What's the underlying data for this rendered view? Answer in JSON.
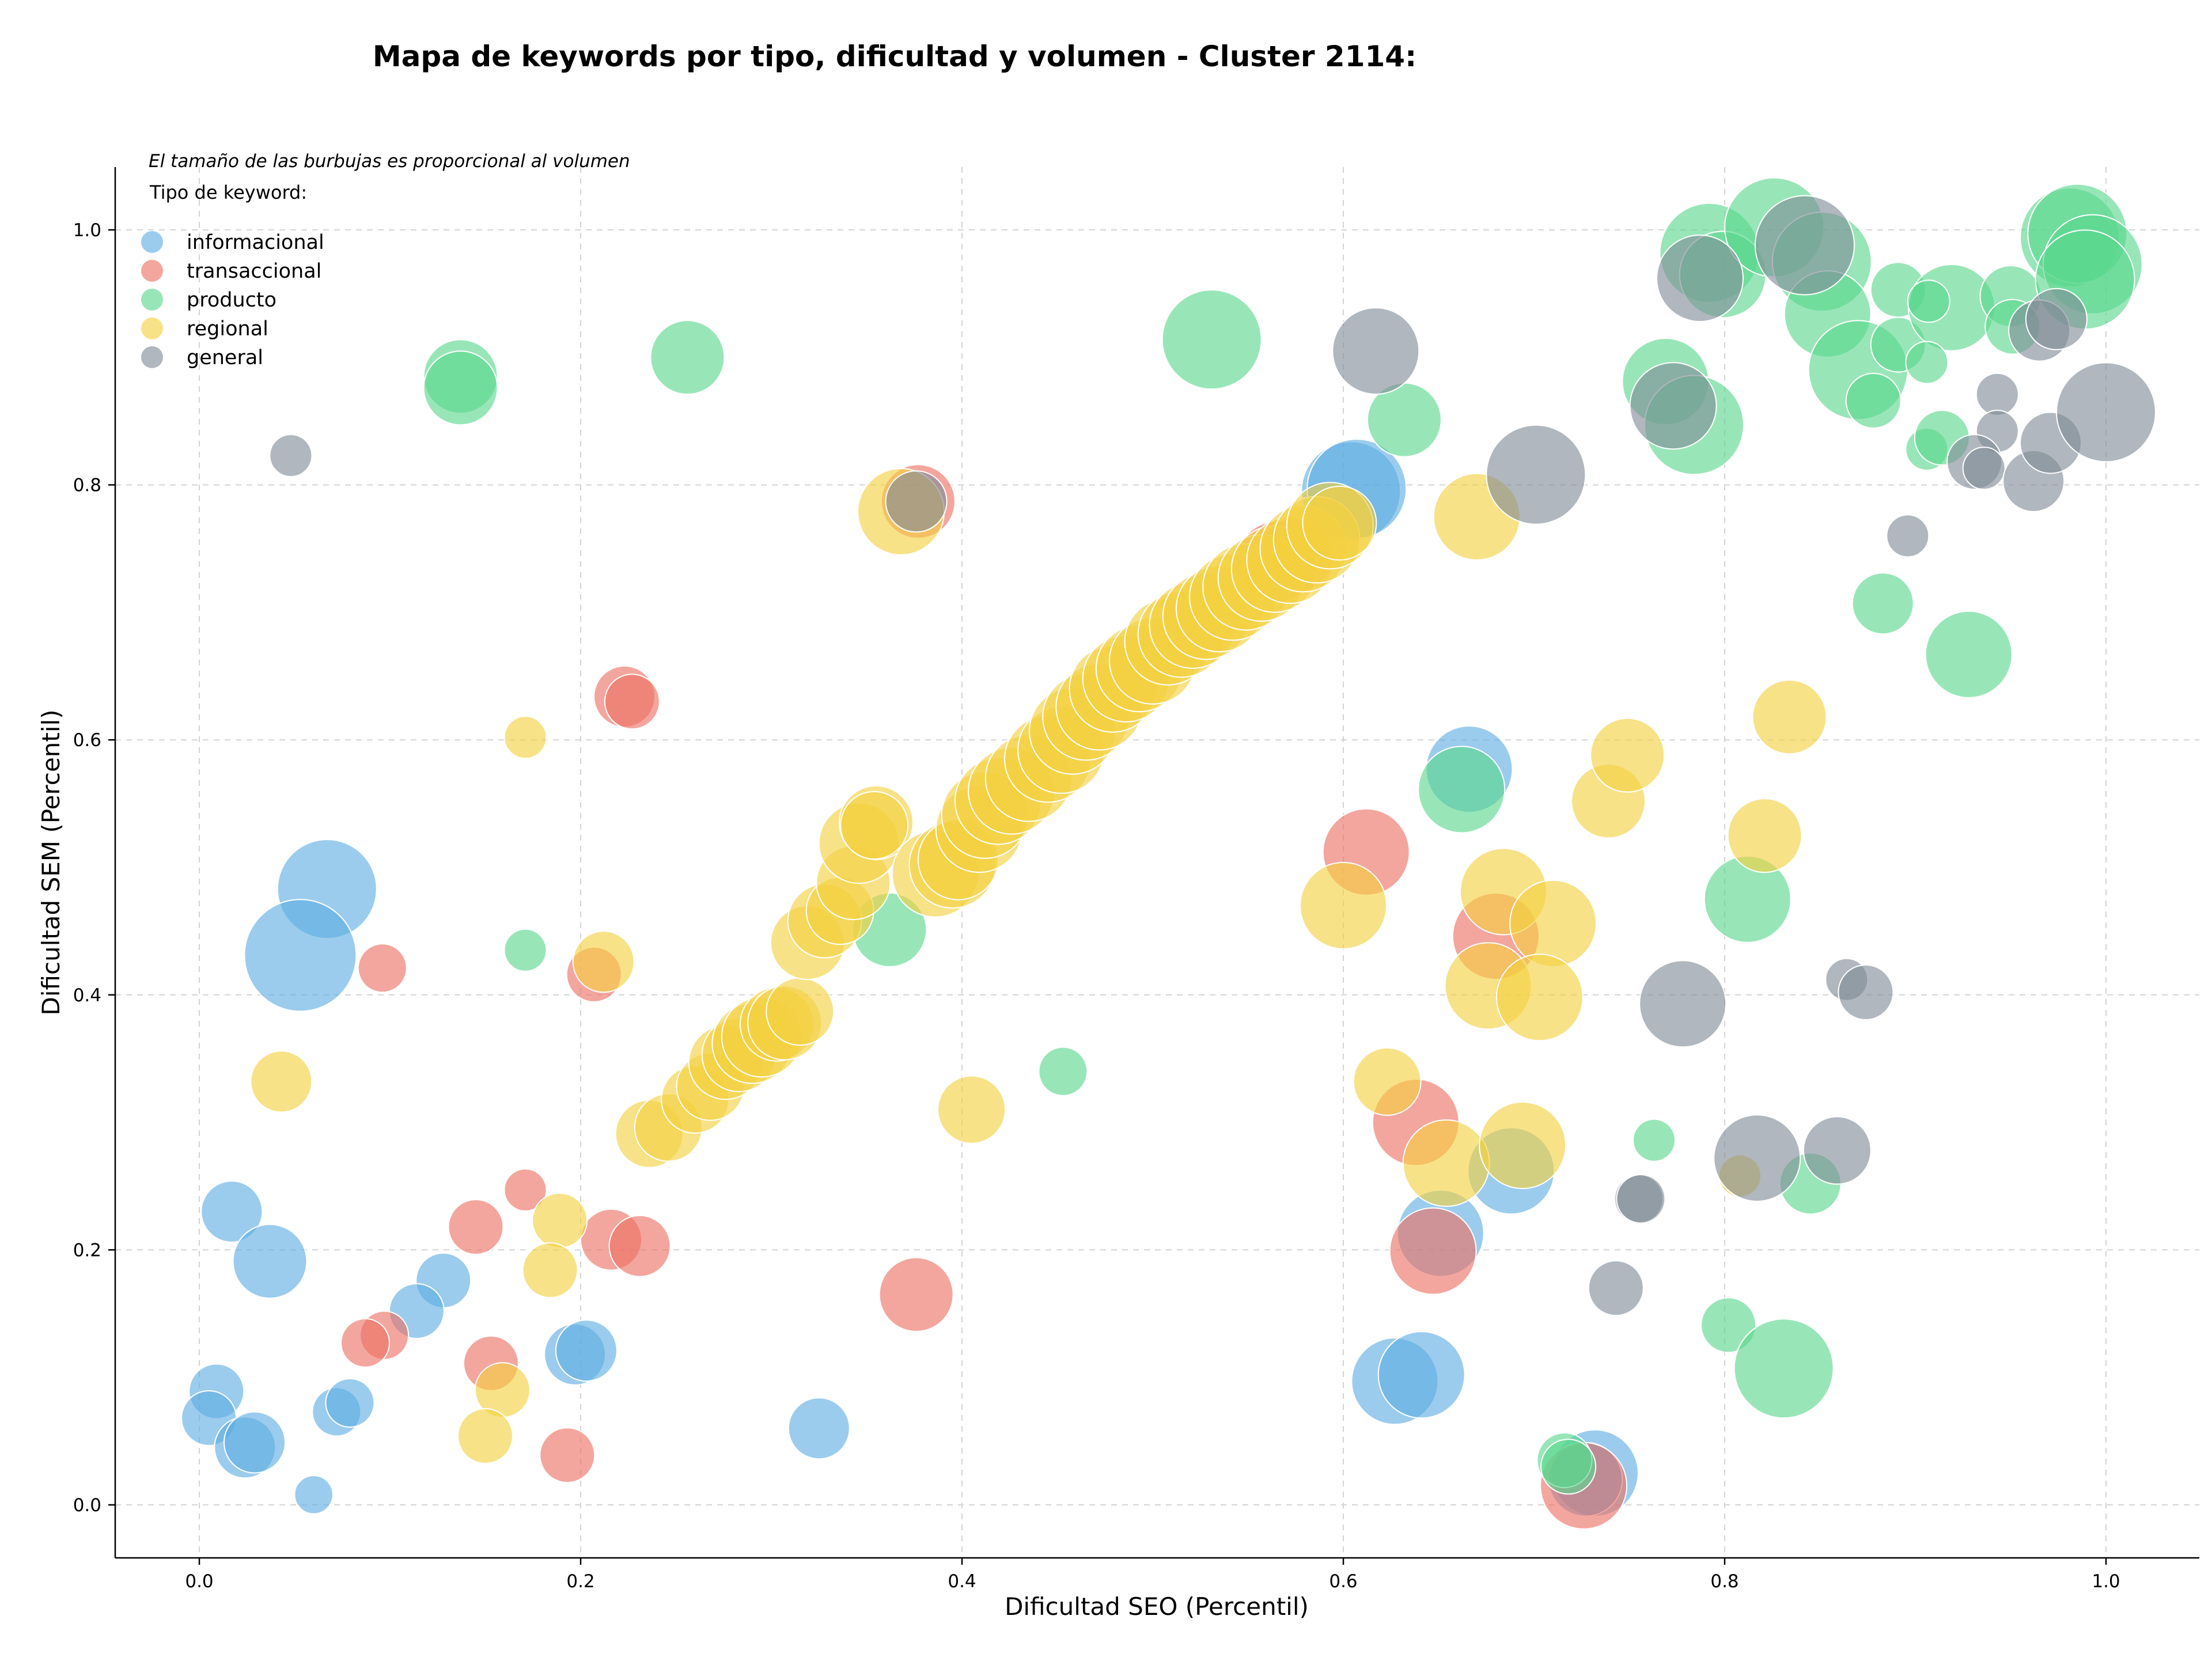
{
  "chart_data": {
    "type": "scatter",
    "title": "Mapa de keywords por tipo, dificultad y volumen - Cluster 2114:",
    "xlabel": "Dificultad SEO (Percentil)",
    "ylabel": "Dificultad SEM (Percentil)",
    "note": "El tamaño de las burbujas es proporcional al volumen",
    "legend_title": "Tipo de keyword:",
    "legend_position": "top-left",
    "grid": true,
    "xlim": [
      -0.045,
      1.05
    ],
    "ylim": [
      -0.04,
      1.05
    ],
    "xticks": [
      "0.0",
      "0.2",
      "0.4",
      "0.6",
      "0.8",
      "1.0"
    ],
    "yticks": [
      "0.0",
      "0.2",
      "0.4",
      "0.6",
      "0.8",
      "1.0"
    ],
    "series": [
      {
        "name": "informacional",
        "color": "#5dade2",
        "points": [
          [
            0.067,
            0.483,
            6
          ],
          [
            0.053,
            0.431,
            7
          ],
          [
            0.017,
            0.23,
            3
          ],
          [
            0.037,
            0.191,
            4
          ],
          [
            0.128,
            0.176,
            2.5
          ],
          [
            0.114,
            0.152,
            2.5
          ],
          [
            0.197,
            0.118,
            3
          ],
          [
            0.203,
            0.121,
            3
          ],
          [
            0.009,
            0.089,
            2.5
          ],
          [
            0.005,
            0.068,
            2.5
          ],
          [
            0.072,
            0.073,
            2
          ],
          [
            0.079,
            0.08,
            2
          ],
          [
            0.024,
            0.045,
            3
          ],
          [
            0.029,
            0.049,
            3
          ],
          [
            0.06,
            0.008,
            1.2
          ],
          [
            0.325,
            0.06,
            3
          ],
          [
            0.604,
            0.795,
            6
          ],
          [
            0.607,
            0.797,
            6
          ],
          [
            0.666,
            0.577,
            5
          ],
          [
            0.688,
            0.262,
            5
          ],
          [
            0.651,
            0.213,
            5
          ],
          [
            0.627,
            0.097,
            5
          ],
          [
            0.641,
            0.102,
            5
          ],
          [
            0.732,
            0.025,
            5
          ],
          [
            0.727,
            0.02,
            4
          ]
        ]
      },
      {
        "name": "transaccional",
        "color": "#ec7063",
        "points": [
          [
            0.223,
            0.634,
            3
          ],
          [
            0.227,
            0.63,
            2.5
          ],
          [
            0.096,
            0.421,
            2
          ],
          [
            0.207,
            0.416,
            2.5
          ],
          [
            0.171,
            0.247,
            1.5
          ],
          [
            0.145,
            0.218,
            2.5
          ],
          [
            0.216,
            0.208,
            3
          ],
          [
            0.231,
            0.203,
            3
          ],
          [
            0.097,
            0.133,
            2
          ],
          [
            0.087,
            0.127,
            2
          ],
          [
            0.153,
            0.111,
            2.5
          ],
          [
            0.193,
            0.039,
            2.5
          ],
          [
            0.376,
            0.165,
            4
          ],
          [
            0.377,
            0.787,
            4
          ],
          [
            0.612,
            0.512,
            5
          ],
          [
            0.638,
            0.3,
            5
          ],
          [
            0.647,
            0.199,
            5
          ],
          [
            0.68,
            0.446,
            5
          ],
          [
            0.726,
            0.015,
            5
          ],
          [
            0.565,
            0.74,
            4.5
          ],
          [
            0.575,
            0.745,
            4
          ]
        ]
      },
      {
        "name": "producto",
        "color": "#58d68d",
        "points": [
          [
            0.137,
            0.885,
            4
          ],
          [
            0.137,
            0.876,
            4
          ],
          [
            0.256,
            0.9,
            4
          ],
          [
            0.531,
            0.914,
            6
          ],
          [
            0.632,
            0.851,
            4
          ],
          [
            0.362,
            0.451,
            4
          ],
          [
            0.171,
            0.435,
            1.5
          ],
          [
            0.453,
            0.34,
            2
          ],
          [
            0.662,
            0.561,
            5
          ],
          [
            0.792,
            0.982,
            6
          ],
          [
            0.799,
            0.965,
            5
          ],
          [
            0.826,
            1.002,
            6
          ],
          [
            0.851,
            0.975,
            6
          ],
          [
            0.854,
            0.934,
            5
          ],
          [
            0.87,
            0.89,
            6
          ],
          [
            0.769,
            0.881,
            5
          ],
          [
            0.784,
            0.847,
            6
          ],
          [
            0.878,
            0.866,
            2.5
          ],
          [
            0.891,
            0.953,
            2.5
          ],
          [
            0.891,
            0.91,
            2.5
          ],
          [
            0.919,
            0.939,
            5
          ],
          [
            0.906,
            0.896,
            1.5
          ],
          [
            0.906,
            0.828,
            1.5
          ],
          [
            0.907,
            0.944,
            1.5
          ],
          [
            0.914,
            0.837,
            2.5
          ],
          [
            0.95,
            0.948,
            3
          ],
          [
            0.951,
            0.924,
            2.5
          ],
          [
            0.981,
            0.994,
            6
          ],
          [
            0.985,
            0.997,
            6
          ],
          [
            0.993,
            0.973,
            6
          ],
          [
            0.989,
            0.961,
            6
          ],
          [
            0.883,
            0.707,
            3
          ],
          [
            0.928,
            0.667,
            5
          ],
          [
            0.812,
            0.475,
            5
          ],
          [
            0.845,
            0.252,
            3
          ],
          [
            0.763,
            0.286,
            1.5
          ],
          [
            0.802,
            0.141,
            2.5
          ],
          [
            0.831,
            0.107,
            6
          ],
          [
            0.716,
            0.035,
            2.5
          ],
          [
            0.718,
            0.03,
            2.5
          ]
        ]
      },
      {
        "name": "regional",
        "color": "#f4d03f",
        "points": [
          [
            0.171,
            0.602,
            1.5
          ],
          [
            0.368,
            0.779,
            5
          ],
          [
            0.043,
            0.332,
            3
          ],
          [
            0.212,
            0.426,
            3
          ],
          [
            0.189,
            0.223,
            2.5
          ],
          [
            0.184,
            0.184,
            2.5
          ],
          [
            0.159,
            0.09,
            2.5
          ],
          [
            0.15,
            0.054,
            2.5
          ],
          [
            0.236,
            0.291,
            3.5
          ],
          [
            0.246,
            0.296,
            3.5
          ],
          [
            0.26,
            0.318,
            3.5
          ],
          [
            0.268,
            0.328,
            3.5
          ],
          [
            0.276,
            0.347,
            4
          ],
          [
            0.283,
            0.353,
            4
          ],
          [
            0.29,
            0.362,
            4.5
          ],
          [
            0.295,
            0.367,
            4.5
          ],
          [
            0.303,
            0.377,
            4
          ],
          [
            0.307,
            0.378,
            4
          ],
          [
            0.315,
            0.387,
            3.5
          ],
          [
            0.319,
            0.441,
            4
          ],
          [
            0.328,
            0.458,
            4
          ],
          [
            0.336,
            0.466,
            3.5
          ],
          [
            0.343,
            0.488,
            4
          ],
          [
            0.346,
            0.519,
            4.5
          ],
          [
            0.355,
            0.535,
            4
          ],
          [
            0.354,
            0.533,
            3.5
          ],
          [
            0.386,
            0.495,
            5
          ],
          [
            0.395,
            0.502,
            5
          ],
          [
            0.398,
            0.506,
            4.5
          ],
          [
            0.405,
            0.31,
            3.5
          ],
          [
            0.409,
            0.53,
            5
          ],
          [
            0.412,
            0.541,
            5
          ],
          [
            0.419,
            0.552,
            5
          ],
          [
            0.426,
            0.56,
            5
          ],
          [
            0.435,
            0.57,
            5
          ],
          [
            0.445,
            0.585,
            5
          ],
          [
            0.452,
            0.592,
            5
          ],
          [
            0.458,
            0.607,
            5
          ],
          [
            0.465,
            0.618,
            5
          ],
          [
            0.472,
            0.626,
            5
          ],
          [
            0.479,
            0.64,
            5
          ],
          [
            0.486,
            0.648,
            5
          ],
          [
            0.493,
            0.656,
            5
          ],
          [
            0.5,
            0.662,
            5
          ],
          [
            0.508,
            0.677,
            5
          ],
          [
            0.515,
            0.683,
            5
          ],
          [
            0.521,
            0.69,
            5
          ],
          [
            0.528,
            0.697,
            5
          ],
          [
            0.535,
            0.703,
            5
          ],
          [
            0.542,
            0.712,
            5
          ],
          [
            0.549,
            0.72,
            5
          ],
          [
            0.557,
            0.727,
            5
          ],
          [
            0.564,
            0.734,
            5
          ],
          [
            0.572,
            0.741,
            5
          ],
          [
            0.579,
            0.75,
            5
          ],
          [
            0.586,
            0.757,
            5
          ],
          [
            0.593,
            0.768,
            5
          ],
          [
            0.598,
            0.77,
            4
          ],
          [
            0.6,
            0.47,
            5
          ],
          [
            0.67,
            0.775,
            5
          ],
          [
            0.684,
            0.481,
            5
          ],
          [
            0.71,
            0.456,
            5
          ],
          [
            0.676,
            0.407,
            5
          ],
          [
            0.703,
            0.398,
            5
          ],
          [
            0.623,
            0.332,
            3.5
          ],
          [
            0.654,
            0.268,
            5
          ],
          [
            0.694,
            0.282,
            5
          ],
          [
            0.739,
            0.552,
            4
          ],
          [
            0.749,
            0.588,
            4
          ],
          [
            0.834,
            0.618,
            4
          ],
          [
            0.821,
            0.525,
            4
          ],
          [
            0.808,
            0.258,
            1.5
          ]
        ]
      },
      {
        "name": "general",
        "color": "#808b96",
        "points": [
          [
            0.048,
            0.823,
            1.5
          ],
          [
            0.617,
            0.905,
            5
          ],
          [
            0.701,
            0.808,
            6
          ],
          [
            0.787,
            0.962,
            5
          ],
          [
            0.773,
            0.862,
            5
          ],
          [
            0.842,
            0.988,
            6
          ],
          [
            0.943,
            0.871,
            1.5
          ],
          [
            0.943,
            0.842,
            1.5
          ],
          [
            0.931,
            0.818,
            2.5
          ],
          [
            0.936,
            0.813,
            1.5
          ],
          [
            0.962,
            0.803,
            3
          ],
          [
            0.971,
            0.833,
            3
          ],
          [
            0.965,
            0.921,
            3
          ],
          [
            0.974,
            0.93,
            3
          ],
          [
            1.0,
            0.857,
            6
          ],
          [
            0.896,
            0.76,
            1.5
          ],
          [
            0.778,
            0.393,
            5
          ],
          [
            0.864,
            0.412,
            1.5
          ],
          [
            0.874,
            0.402,
            2.5
          ],
          [
            0.817,
            0.272,
            5
          ],
          [
            0.859,
            0.278,
            3.5
          ],
          [
            0.755,
            0.24,
            2
          ],
          [
            0.756,
            0.24,
            2
          ],
          [
            0.743,
            0.17,
            2.5
          ],
          [
            0.376,
            0.787,
            3
          ]
        ]
      }
    ]
  }
}
